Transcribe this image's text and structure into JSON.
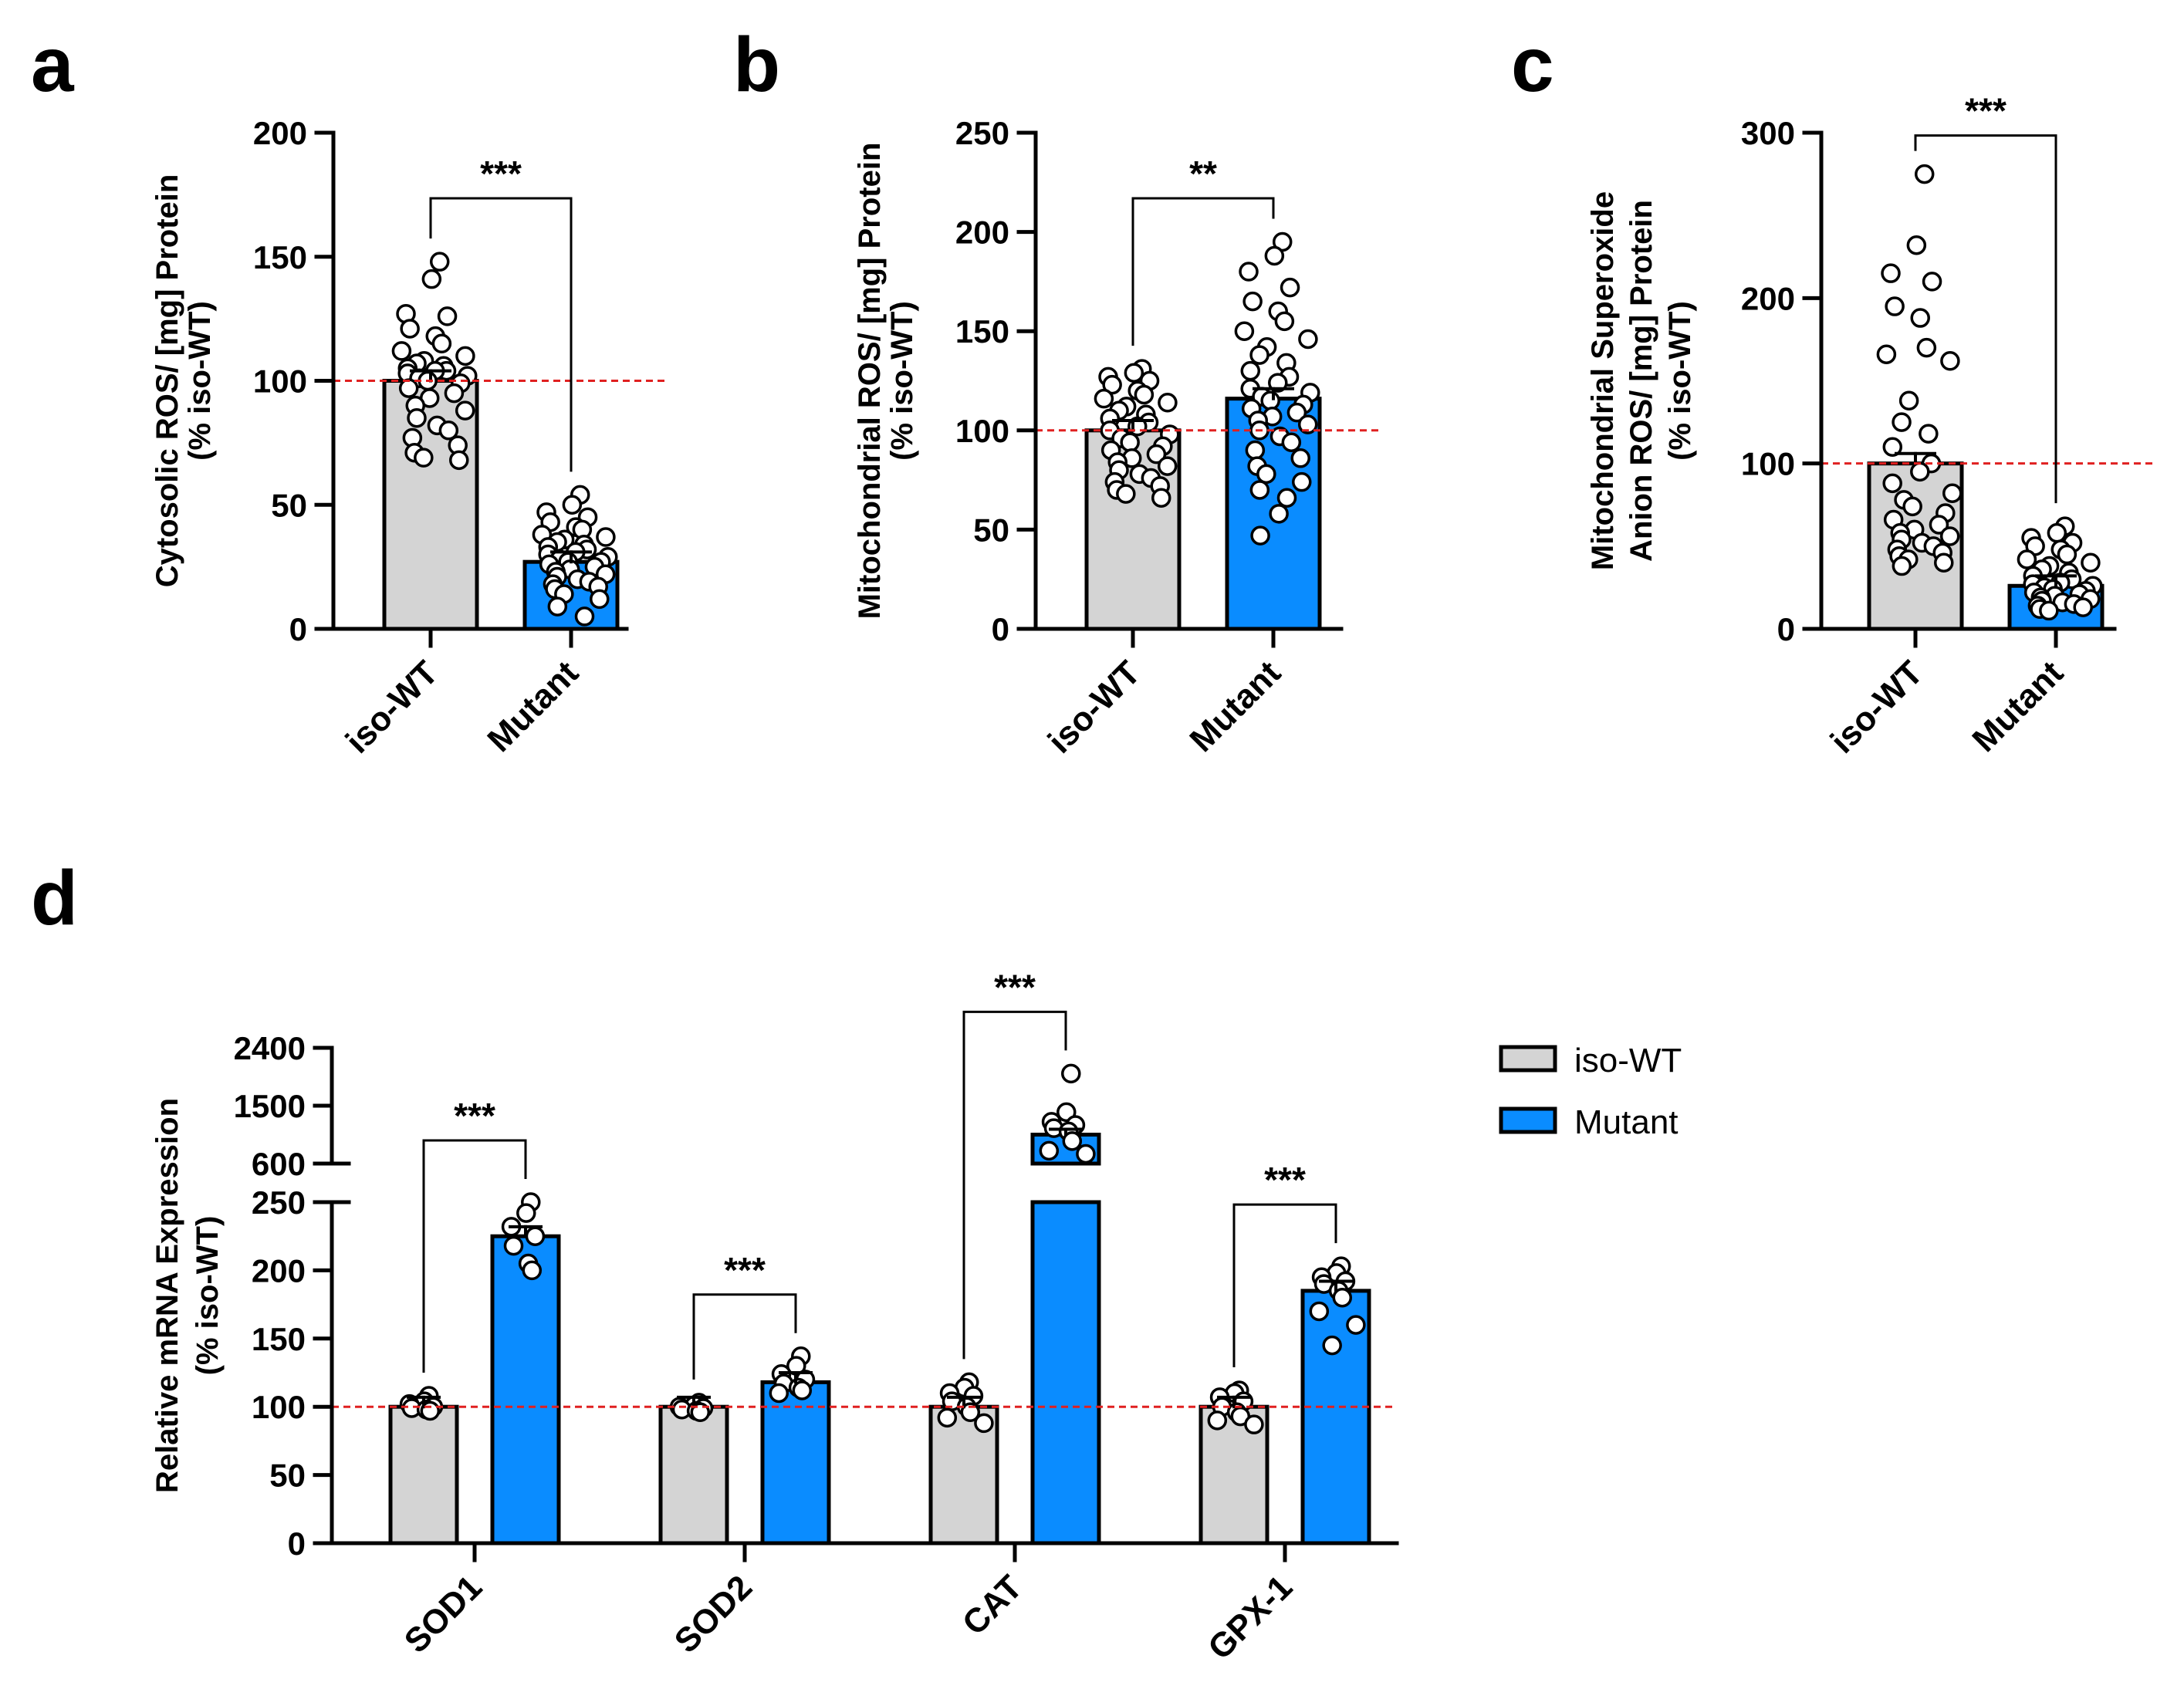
{
  "colors": {
    "wt_fill": "#d4d4d4",
    "mutant_fill": "#0a8cff",
    "axis": "#000000",
    "reference_line": "#e02020",
    "dot_fill": "#ffffff",
    "dot_stroke": "#000000"
  },
  "chart_data": [
    {
      "panel": "a",
      "type": "bar",
      "ylabel": "Cytosolic ROS/ [mg] Protein",
      "ylabel2": "(% iso-WT)",
      "categories": [
        "iso-WT",
        "Mutant"
      ],
      "values": [
        100,
        27
      ],
      "ylim": [
        0,
        200
      ],
      "yticks": [
        0,
        50,
        100,
        150,
        200
      ],
      "reference_line": 100,
      "sig_label": "***",
      "points": [
        [
          148,
          141,
          127,
          126,
          121,
          118,
          115,
          112,
          110,
          108,
          107,
          106,
          105,
          104,
          104,
          103,
          102,
          101,
          100,
          99,
          97,
          95,
          93,
          90,
          88,
          85,
          82,
          80,
          77,
          74,
          71,
          69,
          68
        ],
        [
          54,
          50,
          47,
          45,
          43,
          41,
          40,
          38,
          37,
          36,
          35,
          34,
          33,
          32,
          31,
          30,
          29,
          28,
          27,
          27,
          26,
          25,
          24,
          23,
          22,
          21,
          20,
          19,
          18,
          17,
          16,
          14,
          12,
          9,
          5
        ]
      ]
    },
    {
      "panel": "b",
      "type": "bar",
      "ylabel": "Mitochondrial ROS/ [mg] Protein",
      "ylabel2": "(% iso-WT)",
      "categories": [
        "iso-WT",
        "Mutant"
      ],
      "values": [
        100,
        116
      ],
      "ylim": [
        0,
        250
      ],
      "yticks": [
        0,
        50,
        100,
        150,
        200,
        250
      ],
      "reference_line": 100,
      "sig_label": "**",
      "points": [
        [
          131,
          129,
          127,
          125,
          123,
          120,
          118,
          116,
          114,
          112,
          110,
          108,
          106,
          104,
          102,
          100,
          98,
          96,
          94,
          92,
          90,
          88,
          86,
          84,
          82,
          80,
          78,
          76,
          74,
          72,
          70,
          68,
          66
        ],
        [
          195,
          188,
          180,
          172,
          165,
          160,
          155,
          150,
          146,
          142,
          138,
          134,
          130,
          127,
          124,
          121,
          119,
          117,
          115,
          113,
          111,
          109,
          107,
          105,
          103,
          100,
          97,
          94,
          90,
          86,
          82,
          78,
          74,
          70,
          66,
          58,
          47
        ]
      ]
    },
    {
      "panel": "c",
      "type": "bar",
      "ylabel": "Mitochondrial Superoxide",
      "ylabel2": "Anion ROS/ [mg] Protein",
      "ylabel3": "(% iso-WT)",
      "categories": [
        "iso-WT",
        "Mutant"
      ],
      "values": [
        100,
        26
      ],
      "ylim": [
        0,
        300
      ],
      "yticks": [
        0,
        100,
        200,
        300
      ],
      "reference_line": 100,
      "sig_label": "***",
      "points": [
        [
          275,
          232,
          215,
          210,
          195,
          188,
          170,
          166,
          162,
          138,
          125,
          118,
          110,
          100,
          95,
          88,
          82,
          78,
          74,
          70,
          66,
          63,
          60,
          58,
          56,
          54,
          52,
          50,
          48,
          46,
          44,
          42,
          40,
          38
        ],
        [
          62,
          58,
          55,
          52,
          50,
          48,
          45,
          42,
          40,
          38,
          36,
          34,
          32,
          30,
          28,
          27,
          26,
          25,
          24,
          23,
          22,
          21,
          20,
          19,
          18,
          17,
          16,
          15,
          14,
          13,
          12,
          11
        ]
      ]
    },
    {
      "panel": "d",
      "type": "bar",
      "ylabel": "Relative mRNA Expression",
      "ylabel2": "(% iso-WT)",
      "categories": [
        "SOD1",
        "SOD2",
        "CAT",
        "GPX-1"
      ],
      "series": [
        {
          "name": "iso-WT",
          "values": [
            100,
            100,
            100,
            100
          ]
        },
        {
          "name": "Mutant",
          "values": [
            225,
            118,
            1050,
            185
          ]
        }
      ],
      "y_break": true,
      "lower_ylim": [
        0,
        250
      ],
      "lower_yticks": [
        0,
        50,
        100,
        150,
        200,
        250
      ],
      "upper_ylim": [
        600,
        2400
      ],
      "upper_yticks": [
        600,
        1500,
        2400
      ],
      "reference_line": 100,
      "sig_labels": [
        "***",
        "***",
        "***",
        "***"
      ],
      "legend": [
        "iso-WT",
        "Mutant"
      ],
      "legend_position": "right",
      "points": {
        "wt": [
          [
            108,
            104,
            102,
            100,
            99,
            98,
            97
          ],
          [
            103,
            101,
            100,
            99,
            98,
            97,
            96
          ],
          [
            118,
            114,
            110,
            108,
            104,
            100,
            96,
            92,
            88
          ],
          [
            112,
            110,
            107,
            104,
            100,
            96,
            93,
            90,
            87
          ]
        ],
        "mutant": [
          [
            250,
            242,
            232,
            225,
            218,
            205,
            200
          ],
          [
            137,
            130,
            124,
            120,
            117,
            114,
            112,
            110
          ],
          [
            2000,
            1400,
            1250,
            1200,
            1150,
            1100,
            950,
            800,
            750
          ],
          [
            203,
            198,
            195,
            192,
            190,
            185,
            180,
            170,
            160,
            145
          ]
        ]
      }
    }
  ]
}
